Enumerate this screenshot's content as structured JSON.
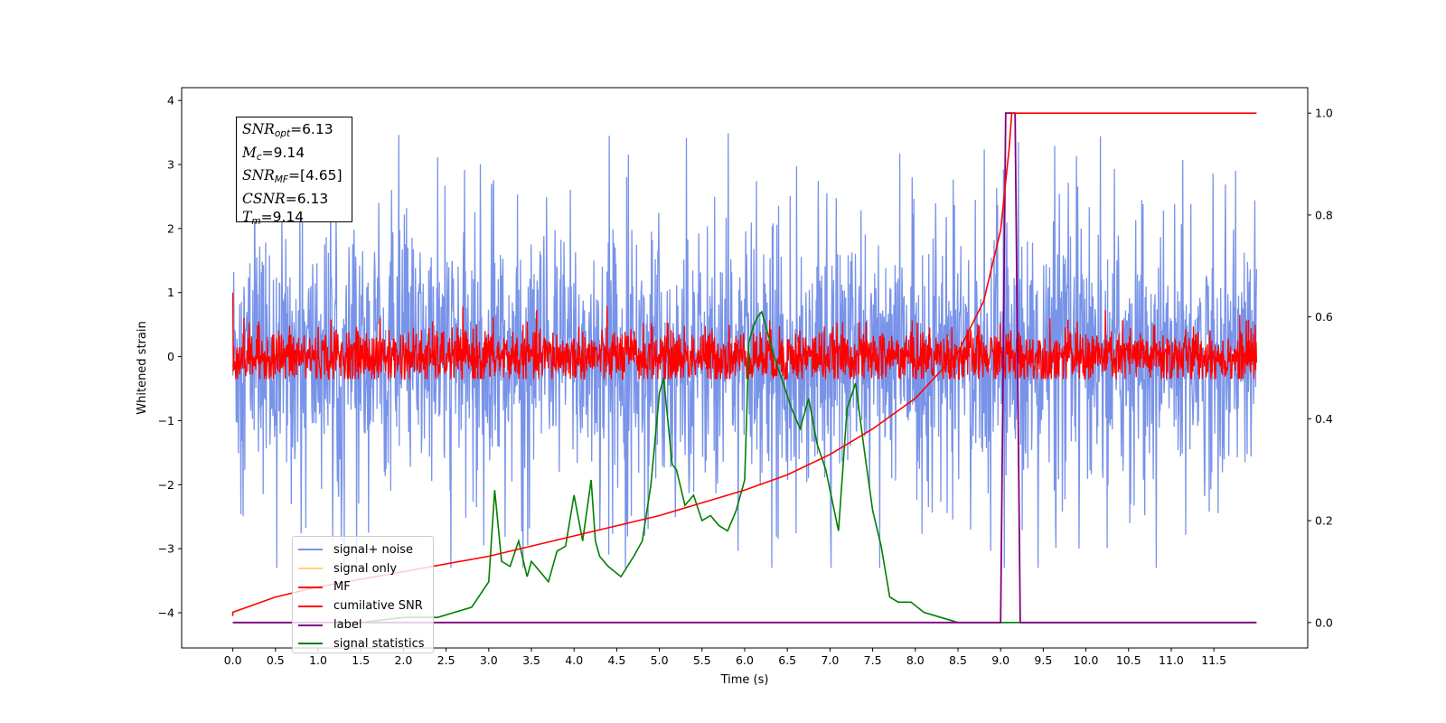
{
  "chart_data": {
    "type": "line",
    "xlabel": "Time (s)",
    "ylabel": "Whitened strain",
    "xlim": [
      -0.6,
      12.6
    ],
    "ylim": [
      -4.55,
      4.2
    ],
    "y2lim": [
      -0.05,
      1.05
    ],
    "x_ticks": [
      "0.0",
      "0.5",
      "1.0",
      "1.5",
      "2.0",
      "2.5",
      "3.0",
      "3.5",
      "4.0",
      "4.5",
      "5.0",
      "5.5",
      "6.0",
      "6.5",
      "7.0",
      "7.5",
      "8.0",
      "8.5",
      "9.0",
      "9.5",
      "10.0",
      "10.5",
      "11.0",
      "11.5"
    ],
    "y_ticks": [
      "4",
      "3",
      "2",
      "1",
      "0",
      "−1",
      "−2",
      "−3",
      "−4"
    ],
    "y2_ticks": [
      "1.0",
      "0.8",
      "0.6",
      "0.4",
      "0.2",
      "0.0"
    ],
    "grid": false,
    "legend_position": "lower-left",
    "colors": {
      "signal_noise": "#7893e8",
      "signal_only": "#ffd57f",
      "mf": "#ff0000",
      "csnr": "#ff0000",
      "label": "#800080",
      "stats": "#008000"
    },
    "series": [
      {
        "name": "signal+ noise",
        "description_values": "noise band approx -1.8 to 2.0 with spikes between -4.0 and 3.8, t 0 to 12"
      },
      {
        "name": "signal only",
        "values": []
      },
      {
        "name": "MF",
        "values": []
      },
      {
        "name": "cumilative SNR",
        "x": [
          0.0,
          0.5,
          1.0,
          2.0,
          3.0,
          4.0,
          5.0,
          6.0,
          6.5,
          7.0,
          7.5,
          8.0,
          8.5,
          8.8,
          9.0,
          9.1,
          9.13,
          12.0
        ],
        "y": [
          0.02,
          0.05,
          0.07,
          0.1,
          0.13,
          0.17,
          0.21,
          0.26,
          0.29,
          0.33,
          0.38,
          0.44,
          0.53,
          0.63,
          0.77,
          0.93,
          1.0,
          1.0
        ]
      },
      {
        "name": "label",
        "x": [
          0.0,
          9.0,
          9.06,
          9.17,
          9.23,
          12.0
        ],
        "y": [
          0.0,
          0.0,
          1.0,
          1.0,
          0.0,
          0.0
        ]
      },
      {
        "name": "signal statistics",
        "x": [
          0.0,
          0.5,
          1.0,
          1.5,
          2.0,
          2.2,
          2.4,
          2.6,
          2.8,
          3.0,
          3.07,
          3.15,
          3.25,
          3.35,
          3.45,
          3.5,
          3.6,
          3.7,
          3.8,
          3.9,
          4.0,
          4.1,
          4.2,
          4.25,
          4.3,
          4.4,
          4.55,
          4.7,
          4.8,
          4.9,
          5.0,
          5.05,
          5.15,
          5.2,
          5.3,
          5.4,
          5.5,
          5.6,
          5.7,
          5.8,
          5.9,
          6.0,
          6.05,
          6.1,
          6.15,
          6.2,
          6.35,
          6.45,
          6.55,
          6.65,
          6.75,
          6.85,
          6.95,
          7.05,
          7.1,
          7.2,
          7.3,
          7.4,
          7.5,
          7.6,
          7.7,
          7.8,
          7.95,
          8.1,
          8.3,
          8.5,
          9.0,
          10.0,
          10.5,
          11.0,
          11.5,
          11.95
        ],
        "y": [
          0.0,
          0.0,
          0.0,
          0.0,
          0.01,
          0.01,
          0.01,
          0.02,
          0.03,
          0.08,
          0.26,
          0.12,
          0.11,
          0.16,
          0.09,
          0.12,
          0.1,
          0.08,
          0.14,
          0.15,
          0.25,
          0.16,
          0.28,
          0.16,
          0.13,
          0.11,
          0.09,
          0.13,
          0.16,
          0.27,
          0.45,
          0.48,
          0.31,
          0.3,
          0.23,
          0.25,
          0.2,
          0.21,
          0.19,
          0.18,
          0.22,
          0.28,
          0.55,
          0.58,
          0.6,
          0.61,
          0.52,
          0.47,
          0.42,
          0.38,
          0.44,
          0.35,
          0.3,
          0.22,
          0.18,
          0.42,
          0.47,
          0.34,
          0.22,
          0.15,
          0.05,
          0.04,
          0.04,
          0.02,
          0.01,
          0.0,
          0.0,
          0.0,
          0.0,
          0.0,
          0.0,
          0.0
        ]
      }
    ]
  },
  "info_box": {
    "snr_opt": "=6.13",
    "mc": "=9.14",
    "snr_mf": "=[4.65]",
    "csnr": "=6.13",
    "tm": "=9.14",
    "snr_sym": "SNR",
    "snr_opt_sub": "opt",
    "mc_sym": "M",
    "mc_sub": "c",
    "snr_mf_sub": "MF",
    "csnr_sym": "CSNR",
    "tm_sym": "T",
    "tm_sub": "m"
  },
  "legend": [
    {
      "label": "signal+ noise",
      "color": "#7893e8"
    },
    {
      "label": "signal only",
      "color": "#ffd57f"
    },
    {
      "label": "MF",
      "color": "#ff0000"
    },
    {
      "label": "cumilative SNR",
      "color": "#ff0000"
    },
    {
      "label": "label",
      "color": "#800080"
    },
    {
      "label": "signal statistics",
      "color": "#008000"
    }
  ]
}
